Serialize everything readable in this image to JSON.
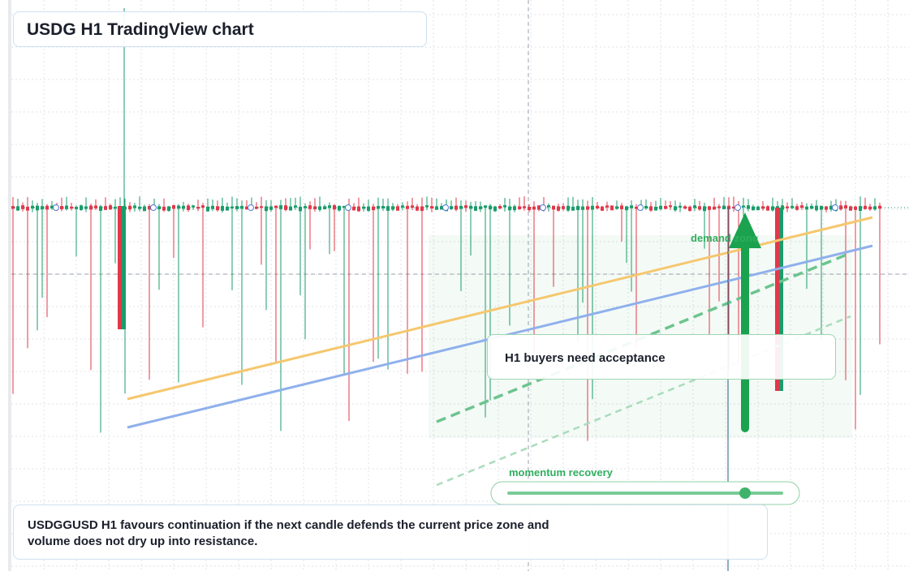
{
  "header": {
    "title": "USDG H1 TradingView chart"
  },
  "annotations": {
    "zone": "demand zone",
    "callout": "H1 buyers need acceptance",
    "slider": "momentum recovery"
  },
  "summary": "USDGGUSD H1 favours continuation if the next candle defends the current price zone and volume does not dry up into resistance."
}
